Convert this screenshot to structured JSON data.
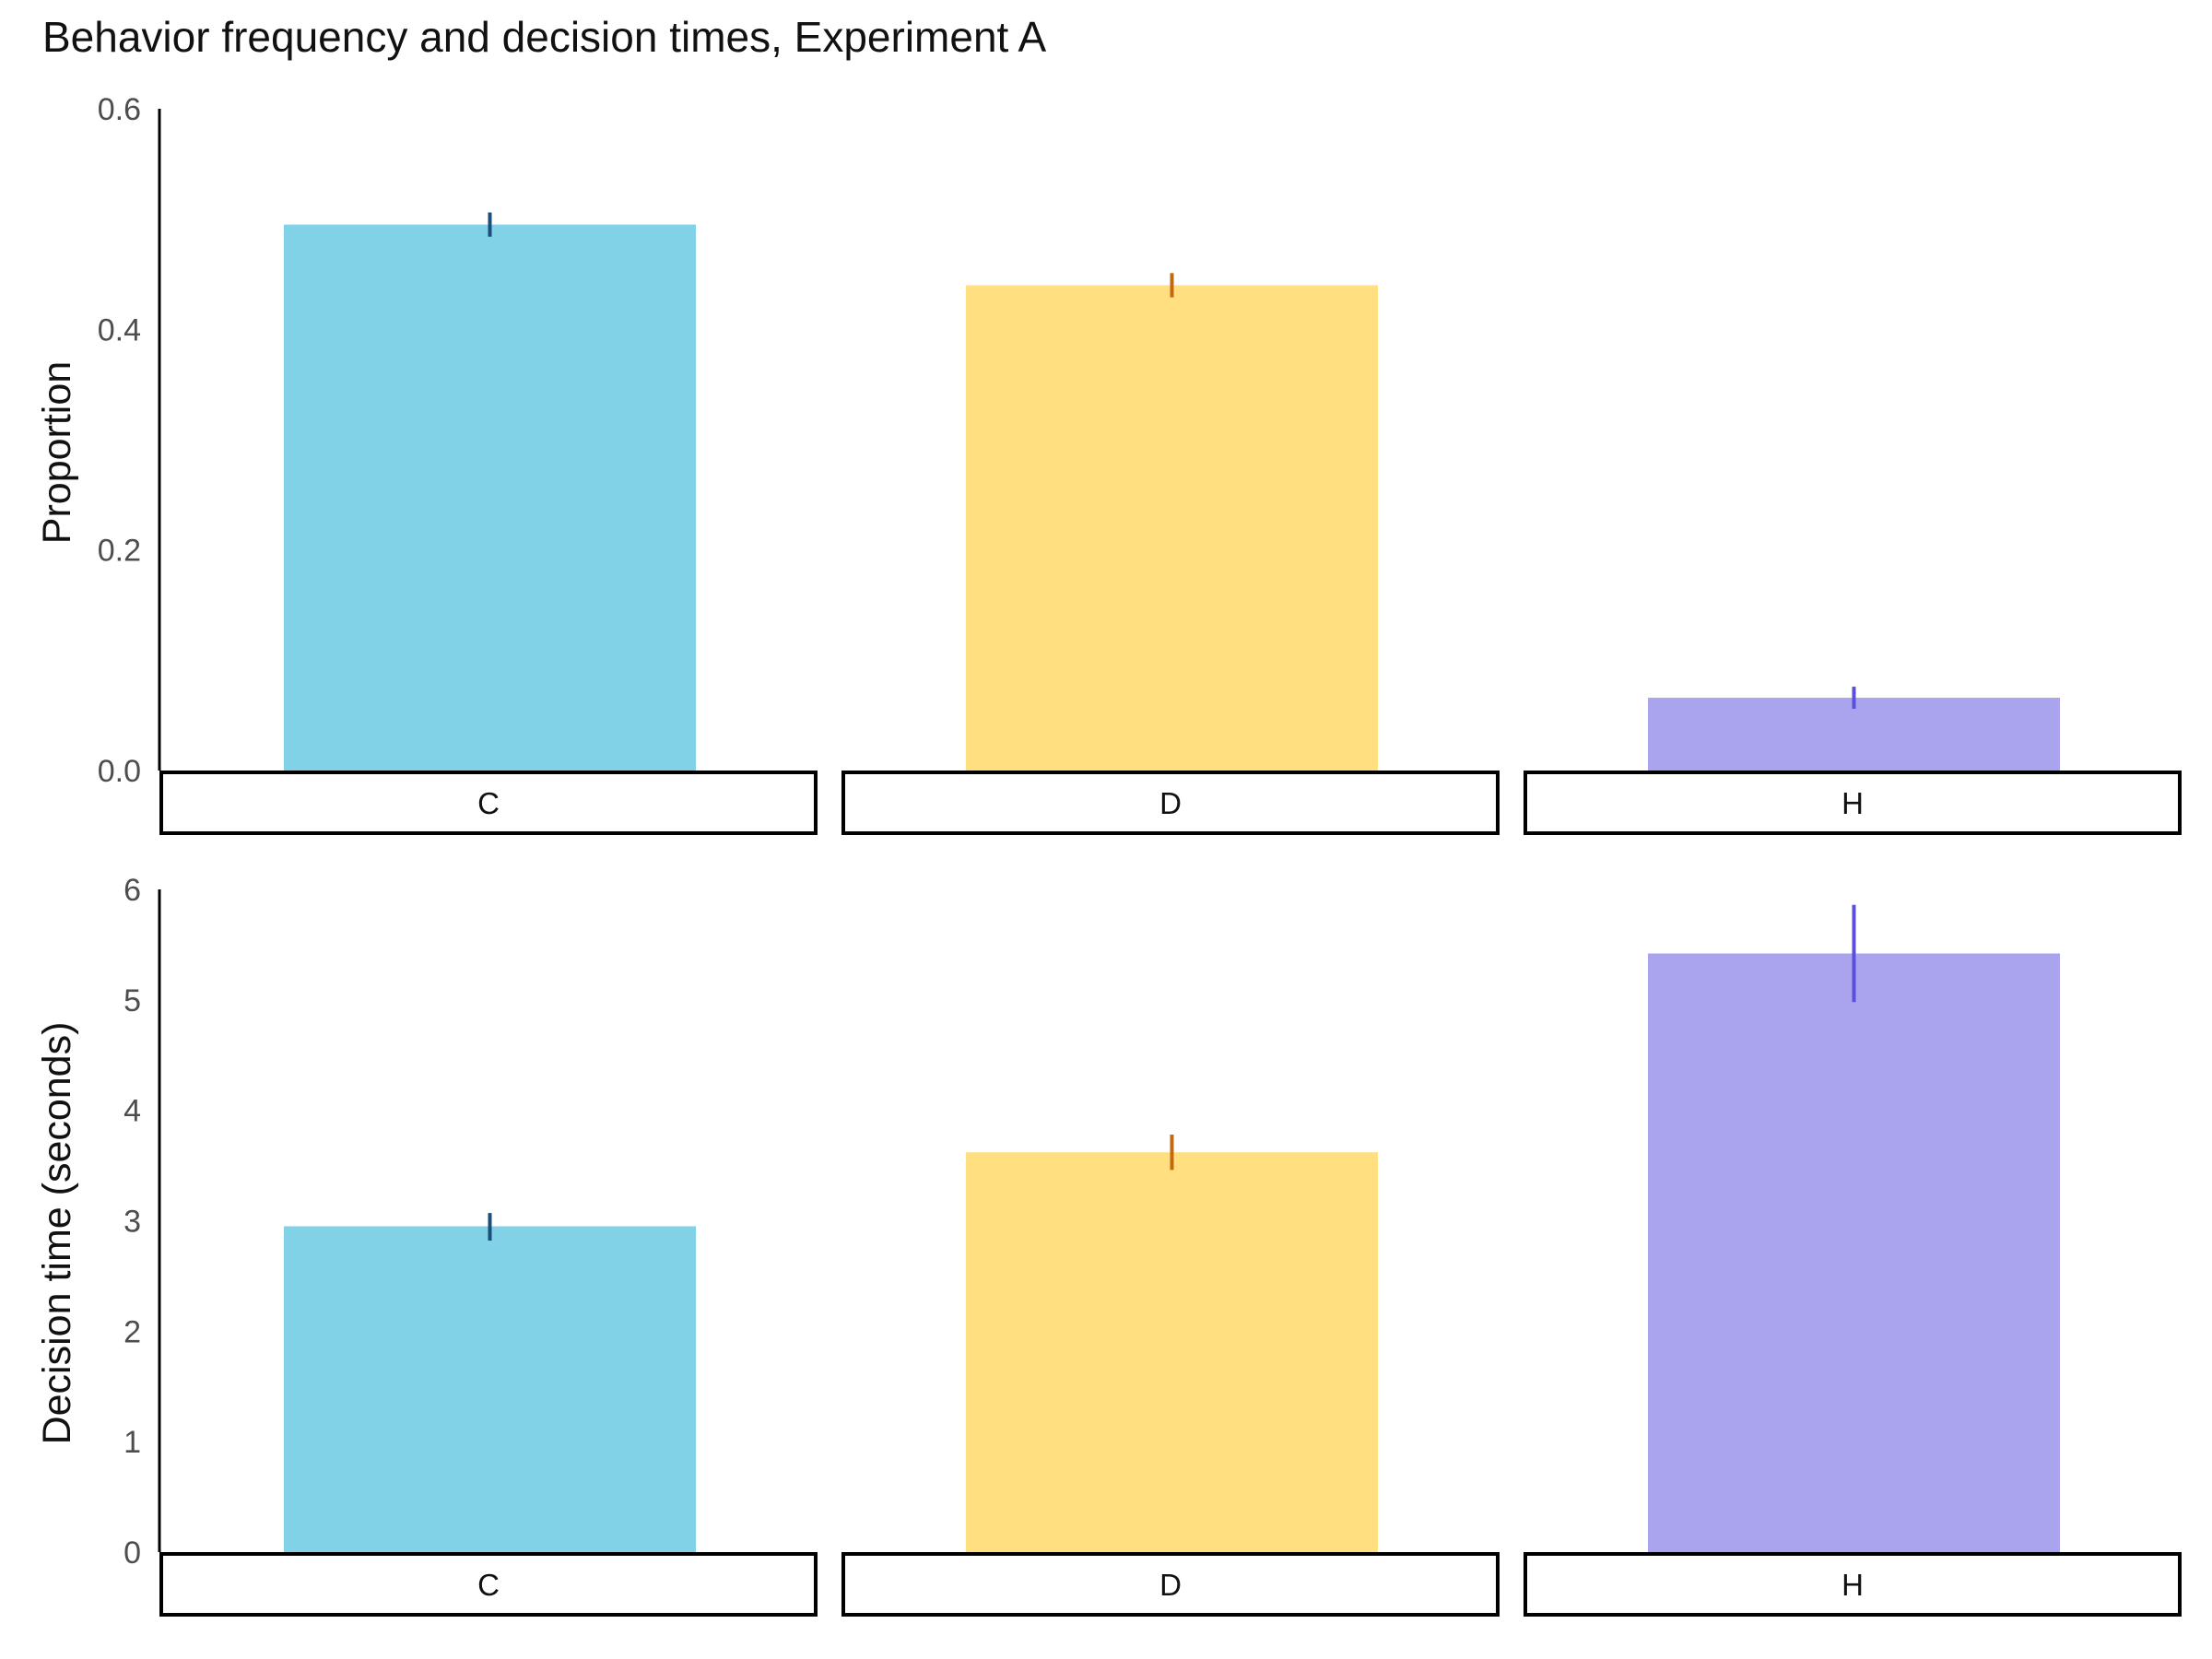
{
  "chart_data": [
    {
      "type": "bar",
      "title": "Behavior frequency and decision times, Experiment A",
      "ylabel": "Proportion",
      "xlabel": "",
      "categories": [
        "C",
        "D",
        "H"
      ],
      "values": [
        0.495,
        0.44,
        0.066
      ],
      "error_low": [
        0.484,
        0.429,
        0.056
      ],
      "error_high": [
        0.506,
        0.451,
        0.076
      ],
      "ylim": [
        0,
        0.6
      ],
      "yticks": [
        0,
        0.2,
        0.4,
        0.6
      ],
      "ytick_labels": [
        "0.0",
        "0.2",
        "0.4",
        "0.6"
      ],
      "colors": [
        "#81d2e7",
        "#ffdf80",
        "#aaa4ef"
      ],
      "error_colors": [
        "#1b4f7a",
        "#c2680e",
        "#5a4fdc"
      ],
      "grid": false,
      "facet_strips": true
    },
    {
      "type": "bar",
      "title": "",
      "ylabel": "Decision time (seconds)",
      "xlabel": "",
      "categories": [
        "C",
        "D",
        "H"
      ],
      "values": [
        2.95,
        3.62,
        5.42
      ],
      "error_low": [
        2.82,
        3.46,
        4.98
      ],
      "error_high": [
        3.07,
        3.78,
        5.86
      ],
      "ylim": [
        0,
        6
      ],
      "yticks": [
        0,
        1,
        2,
        3,
        4,
        5,
        6
      ],
      "ytick_labels": [
        "0",
        "1",
        "2",
        "3",
        "4",
        "5",
        "6"
      ],
      "colors": [
        "#81d2e7",
        "#ffdf80",
        "#aaa4ef"
      ],
      "error_colors": [
        "#1b4f7a",
        "#c2680e",
        "#5a4fdc"
      ],
      "grid": false,
      "facet_strips": true
    }
  ]
}
